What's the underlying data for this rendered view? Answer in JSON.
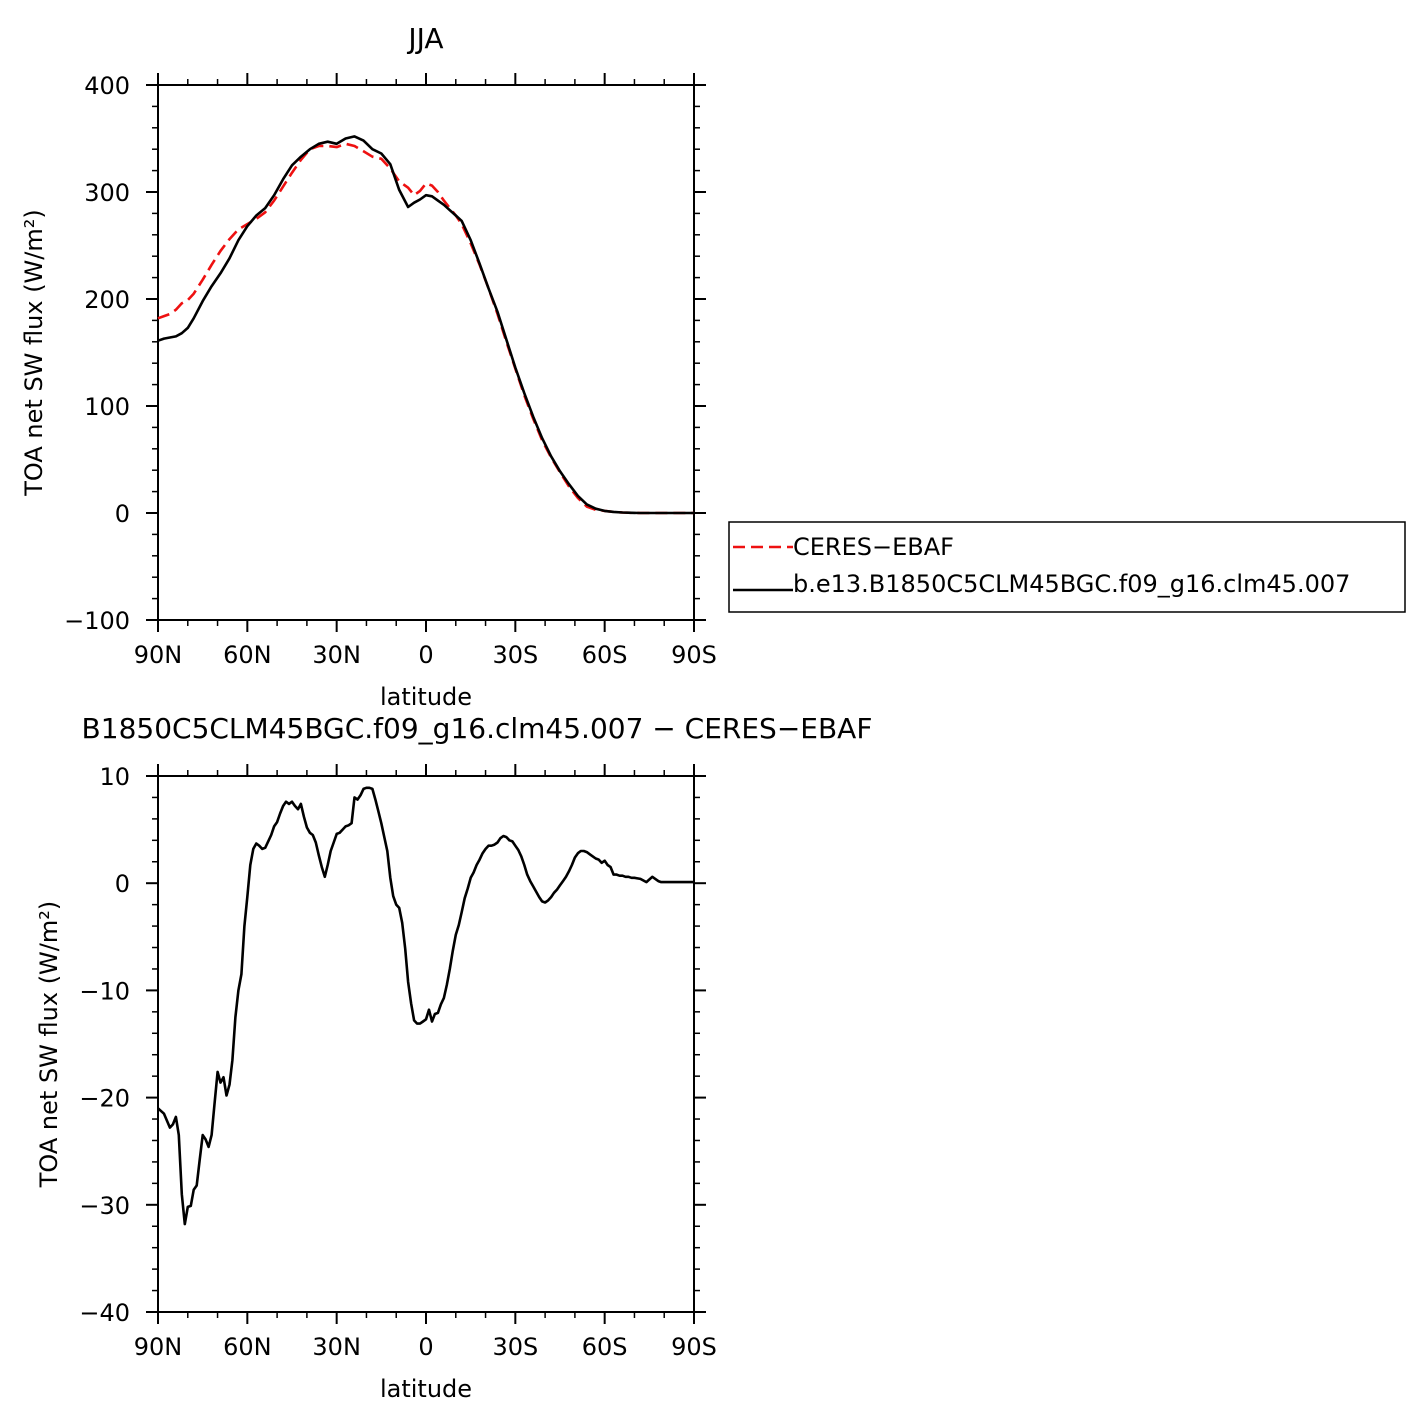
{
  "chart_data": [
    {
      "type": "line",
      "title": "JJA",
      "xlabel": "latitude",
      "ylabel": "TOA net SW flux (W/m²)",
      "xlim": [
        90,
        -90
      ],
      "ylim": [
        -100,
        400
      ],
      "x_tick_values": [
        90,
        60,
        30,
        0,
        -30,
        -60,
        -90
      ],
      "x_tick_labels": [
        "90N",
        "60N",
        "30N",
        "0",
        "30S",
        "60S",
        "90S"
      ],
      "y_tick_values": [
        -100,
        0,
        100,
        200,
        300,
        400
      ],
      "y_tick_labels": [
        "−100",
        "0",
        "100",
        "200",
        "300",
        "400"
      ],
      "grid": false,
      "legend_position": "right",
      "series": [
        {
          "name": "CERES−EBAF",
          "color": "#ee1111",
          "style": "dashed",
          "x": [
            90,
            88,
            86,
            84,
            82,
            80,
            78,
            75,
            72,
            69,
            66,
            63,
            60,
            57,
            54,
            51,
            48,
            45,
            42,
            39,
            36,
            33,
            30,
            27,
            24,
            21,
            18,
            15,
            12,
            9,
            6,
            4,
            2,
            0,
            -2,
            -4,
            -6,
            -8,
            -10,
            -12,
            -15,
            -18,
            -21,
            -24,
            -27,
            -30,
            -33,
            -36,
            -39,
            -42,
            -45,
            -48,
            -51,
            -54,
            -57,
            -60,
            -63,
            -66,
            -69,
            -72,
            -75,
            -78,
            -81,
            -84,
            -87,
            -90
          ],
          "y": [
            182,
            184,
            186,
            190,
            196,
            199,
            205,
            218,
            232,
            245,
            256,
            265,
            270,
            275,
            281,
            292,
            305,
            318,
            330,
            340,
            343,
            343,
            342,
            345,
            343,
            338,
            333,
            331,
            322,
            310,
            304,
            297,
            301,
            308,
            306,
            300,
            292,
            285,
            278,
            270,
            252,
            232,
            210,
            186,
            160,
            135,
            110,
            88,
            68,
            52,
            38,
            25,
            14,
            6,
            3,
            2,
            1,
            0.5,
            0.2,
            0,
            0,
            0,
            0,
            0,
            0,
            0
          ]
        },
        {
          "name": "b.e13.B1850C5CLM45BGC.f09_g16.clm45.007",
          "color": "#000000",
          "style": "solid",
          "x": [
            90,
            88,
            86,
            84,
            82,
            80,
            78,
            75,
            72,
            69,
            66,
            63,
            60,
            57,
            54,
            51,
            48,
            45,
            42,
            39,
            36,
            33,
            30,
            27,
            24,
            21,
            18,
            15,
            12,
            9,
            6,
            4,
            2,
            0,
            -2,
            -4,
            -6,
            -8,
            -10,
            -12,
            -15,
            -18,
            -21,
            -24,
            -27,
            -30,
            -33,
            -36,
            -39,
            -42,
            -45,
            -48,
            -51,
            -54,
            -57,
            -60,
            -63,
            -66,
            -69,
            -72,
            -75,
            -78,
            -81,
            -84,
            -87,
            -90
          ],
          "y": [
            161,
            163,
            164,
            165,
            168,
            173,
            182,
            198,
            212,
            224,
            238,
            255,
            268,
            278,
            285,
            297,
            312,
            325,
            333,
            340,
            345,
            347,
            345,
            350,
            352,
            348,
            340,
            336,
            326,
            302,
            286,
            290,
            293,
            297,
            296,
            292,
            288,
            283,
            278,
            273,
            255,
            233,
            210,
            188,
            162,
            136,
            112,
            90,
            70,
            53,
            39,
            27,
            16,
            8,
            4,
            2,
            1,
            0.5,
            0.2,
            0,
            0,
            0,
            0,
            0,
            0,
            0
          ]
        }
      ]
    },
    {
      "type": "line",
      "title": "B1850C5CLM45BGC.f09_g16.clm45.007 − CERES−EBAF",
      "xlabel": "latitude",
      "ylabel": "TOA net SW flux (W/m²)",
      "xlim": [
        90,
        -90
      ],
      "ylim": [
        -40,
        10
      ],
      "x_tick_values": [
        90,
        60,
        30,
        0,
        -30,
        -60,
        -90
      ],
      "x_tick_labels": [
        "90N",
        "60N",
        "30N",
        "0",
        "30S",
        "60S",
        "90S"
      ],
      "y_tick_values": [
        -40,
        -30,
        -20,
        -10,
        0,
        10
      ],
      "y_tick_labels": [
        "−40",
        "−30",
        "−20",
        "−10",
        "0",
        "10"
      ],
      "grid": false,
      "series": [
        {
          "color": "#000000",
          "style": "solid",
          "x": [
            90,
            88,
            86,
            85,
            84,
            83,
            82,
            81,
            80,
            79,
            78,
            77,
            76,
            75,
            74,
            73,
            72,
            71,
            70,
            69,
            68,
            67,
            66,
            65,
            64,
            63,
            62,
            61,
            60,
            59,
            58,
            57,
            56,
            55,
            54,
            53,
            52,
            51,
            50,
            49,
            48,
            47,
            46,
            45,
            44,
            43,
            42,
            41,
            40,
            39,
            38,
            37,
            36,
            35,
            34,
            33,
            32,
            31,
            30,
            29,
            28,
            27,
            26,
            25,
            24,
            23,
            22,
            21,
            20,
            19,
            18,
            17,
            16,
            15,
            14,
            13,
            12,
            11,
            10,
            9,
            8,
            7,
            6,
            5,
            4,
            3,
            2,
            1,
            0,
            -1,
            -2,
            -3,
            -4,
            -5,
            -6,
            -7,
            -8,
            -9,
            -10,
            -11,
            -12,
            -13,
            -14,
            -15,
            -16,
            -17,
            -18,
            -19,
            -20,
            -21,
            -22,
            -23,
            -24,
            -25,
            -26,
            -27,
            -28,
            -29,
            -30,
            -31,
            -32,
            -33,
            -34,
            -35,
            -36,
            -37,
            -38,
            -39,
            -40,
            -41,
            -42,
            -43,
            -44,
            -45,
            -46,
            -47,
            -48,
            -49,
            -50,
            -51,
            -52,
            -53,
            -54,
            -55,
            -56,
            -57,
            -58,
            -59,
            -60,
            -61,
            -62,
            -63,
            -64,
            -65,
            -66,
            -67,
            -68,
            -69,
            -70,
            -72,
            -74,
            -76,
            -77,
            -78,
            -79,
            -80,
            -82,
            -84,
            -86,
            -88,
            -90
          ],
          "y": [
            -21,
            -21.5,
            -22.8,
            -22.5,
            -21.8,
            -23.5,
            -29,
            -31.8,
            -30.2,
            -30.1,
            -28.6,
            -28.2,
            -25.8,
            -23.5,
            -23.9,
            -24.6,
            -23.5,
            -20.5,
            -17.6,
            -18.6,
            -18.1,
            -19.8,
            -18.8,
            -16.5,
            -12.5,
            -10,
            -8.5,
            -4,
            -1.3,
            1.7,
            3.2,
            3.7,
            3.5,
            3.2,
            3.3,
            3.9,
            4.5,
            5.3,
            5.7,
            6.5,
            7.2,
            7.6,
            7.4,
            7.6,
            7.2,
            6.9,
            7.4,
            6.2,
            5.2,
            4.7,
            4.5,
            3.8,
            2.6,
            1.5,
            0.6,
            1.7,
            3,
            3.8,
            4.6,
            4.7,
            5,
            5.3,
            5.4,
            5.6,
            8,
            7.8,
            8.2,
            8.8,
            8.9,
            8.9,
            8.8,
            7.8,
            6.7,
            5.6,
            4.3,
            3,
            0.5,
            -1.2,
            -2,
            -2.3,
            -3.7,
            -6.1,
            -9.2,
            -11.2,
            -12.8,
            -13.1,
            -13.1,
            -12.9,
            -12.7,
            -11.8,
            -12.9,
            -12.2,
            -12.1,
            -11.3,
            -10.7,
            -9.5,
            -8,
            -6.3,
            -4.8,
            -3.9,
            -2.7,
            -1.4,
            -0.5,
            0.5,
            1,
            1.7,
            2.2,
            2.8,
            3.2,
            3.5,
            3.5,
            3.6,
            3.8,
            4.2,
            4.4,
            4.3,
            4,
            3.9,
            3.5,
            3.1,
            2.5,
            1.7,
            0.8,
            0.2,
            -0.3,
            -0.8,
            -1.3,
            -1.7,
            -1.8,
            -1.6,
            -1.3,
            -0.9,
            -0.6,
            -0.2,
            0.2,
            0.6,
            1.1,
            1.7,
            2.4,
            2.8,
            3,
            3,
            2.9,
            2.7,
            2.5,
            2.3,
            2.2,
            1.9,
            2.1,
            1.7,
            1.5,
            0.8,
            0.8,
            0.7,
            0.7,
            0.6,
            0.6,
            0.5,
            0.5,
            0.4,
            0.1,
            0.6,
            0.4,
            0.2,
            0.1,
            0.1,
            0.1,
            0.1,
            0.1,
            0.1,
            0.1
          ]
        }
      ]
    }
  ]
}
